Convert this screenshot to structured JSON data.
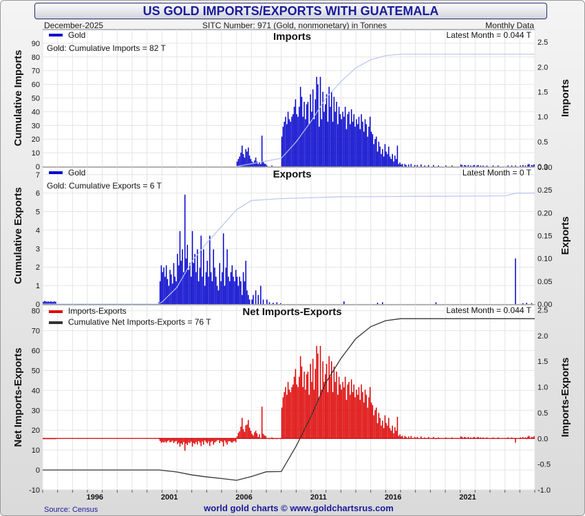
{
  "header": {
    "title": "US GOLD IMPORTS/EXPORTS WITH GUATEMALA",
    "date": "December-2025",
    "sitc": "SITC Number: 971 (Gold, nonmonetary) in Tonnes",
    "frequency": "Monthly Data"
  },
  "footer": {
    "source": "Source: Census",
    "credit": "world gold charts © www.goldchartsrus.com"
  },
  "colors": {
    "imports_bar": "#0000cc",
    "exports_bar": "#0000cc",
    "net_bar": "#dd0000",
    "cumulative_line": "#b8c4f0",
    "net_cumulative_line": "#333333",
    "zero_line_net": "#cc0000"
  },
  "chart_data": [
    {
      "type": "bar",
      "title": "Imports",
      "legend": [
        "Gold",
        "Gold: Cumulative Imports = 82 T"
      ],
      "latest": "Latest Month = 0.044 T",
      "ylabel_left": "Cumulative Imports",
      "ylabel_right": "Imports",
      "ylim_left": [
        0,
        100
      ],
      "ylim_right": [
        0,
        2.75
      ],
      "yticks_left": [
        "0",
        "10",
        "20",
        "30",
        "40",
        "50",
        "60",
        "70",
        "80",
        "90"
      ],
      "yticks_right": [
        "0.0",
        "0.5",
        "1.0",
        "1.5",
        "2.0",
        "2.5"
      ],
      "bars_monthly_by_year": {
        "2006": [
          0.1,
          0.15,
          0.2,
          0.28,
          0.42,
          0.25,
          0.18,
          0.35,
          0.3,
          0.38,
          0.22,
          0.15
        ],
        "2007": [
          0.1,
          0.08,
          0.12,
          0.18,
          0.1,
          0.05,
          0.08,
          0.05,
          0.62,
          0.1,
          0.06,
          0.05
        ],
        "2008": [
          0.02,
          0.0,
          0.0,
          0.0,
          0.02,
          0.0,
          0.0,
          0.0,
          0.0,
          0.0,
          0.0,
          0.0
        ],
        "2009": [
          0.6,
          0.8,
          0.9,
          1.0,
          0.85,
          1.1,
          0.95,
          0.9,
          1.0,
          1.05,
          1.2,
          1.35
        ],
        "2010": [
          1.05,
          1.0,
          1.2,
          1.6,
          1.4,
          1.0,
          1.3,
          0.95,
          1.25,
          1.3,
          0.85,
          1.45
        ],
        "2011": [
          1.1,
          1.55,
          0.95,
          1.35,
          1.8,
          1.65,
          0.8,
          1.8,
          0.95,
          1.5,
          1.1,
          1.25
        ],
        "2012": [
          1.45,
          0.9,
          1.6,
          1.2,
          1.5,
          0.9,
          1.4,
          1.1,
          1.3,
          0.85,
          1.2,
          1.05
        ],
        "2013": [
          0.95,
          1.1,
          1.0,
          1.2,
          0.75,
          1.05,
          1.1,
          0.85,
          1.15,
          0.9,
          1.05,
          0.8
        ],
        "2014": [
          0.95,
          0.85,
          1.0,
          0.75,
          1.05,
          0.9,
          0.7,
          0.95,
          0.85,
          0.6,
          0.8,
          1.0
        ],
        "2015": [
          0.7,
          0.65,
          0.45,
          0.55,
          0.6,
          0.3,
          0.5,
          0.4,
          0.25,
          0.35,
          0.2,
          0.45
        ],
        "2016": [
          0.3,
          0.25,
          0.4,
          0.2,
          0.15,
          0.25,
          0.1,
          0.22,
          0.15,
          0.42,
          0.05,
          0.08
        ],
        "2017": [
          0.04,
          0.05,
          0.0,
          0.05,
          0.03,
          0.0,
          0.04,
          0.0,
          0.05,
          0.0,
          0.0,
          0.03
        ],
        "2018": [
          0.0,
          0.03,
          0.0,
          0.0,
          0.04,
          0.0,
          0.0,
          0.02,
          0.0,
          0.0,
          0.03,
          0.0
        ],
        "2019": [
          0.0,
          0.0,
          0.03,
          0.0,
          0.0,
          0.0,
          0.02,
          0.0,
          0.0,
          0.0,
          0.0,
          0.0
        ],
        "2020": [
          0.02,
          0.0,
          0.0,
          0.0,
          0.0,
          0.02,
          0.0,
          0.0,
          0.0,
          0.0,
          0.0,
          0.0
        ],
        "2021": [
          0.04,
          0.03,
          0.0,
          0.03,
          0.02,
          0.0,
          0.03,
          0.0,
          0.02,
          0.0,
          0.02,
          0.03
        ],
        "2022": [
          0.0,
          0.02,
          0.03,
          0.0,
          0.02,
          0.0,
          0.02,
          0.0,
          0.0,
          0.02,
          0.0,
          0.0
        ],
        "2023": [
          0.0,
          0.0,
          0.02,
          0.0,
          0.0,
          0.0,
          0.02,
          0.0,
          0.0,
          0.0,
          0.0,
          0.0
        ],
        "2024": [
          0.0,
          0.0,
          0.02,
          0.0,
          0.0,
          0.02,
          0.0,
          0.0,
          0.02,
          0.0,
          0.0,
          0.0
        ],
        "2025": [
          0.02,
          0.0,
          0.03,
          0.0,
          0.02,
          0.0,
          0.04,
          0.05,
          0.0,
          0.03,
          0.02,
          0.044
        ]
      },
      "cumulative_points": [
        [
          2006.0,
          0
        ],
        [
          2007.0,
          2
        ],
        [
          2008.0,
          4
        ],
        [
          2009.0,
          6
        ],
        [
          2010.0,
          18
        ],
        [
          2011.0,
          33
        ],
        [
          2012.0,
          50
        ],
        [
          2013.0,
          62
        ],
        [
          2014.0,
          72
        ],
        [
          2015.0,
          78
        ],
        [
          2016.0,
          81
        ],
        [
          2017.0,
          82
        ],
        [
          2026.0,
          82
        ]
      ]
    },
    {
      "type": "bar",
      "title": "Exports",
      "legend": [
        "Gold",
        "Gold: Cumulative Exports = 6 T"
      ],
      "latest": "Latest Month = 0 T",
      "ylabel_left": "Cumulative Exports",
      "ylabel_right": "Exports",
      "ylim_left": [
        0,
        7.4
      ],
      "ylim_right": [
        0,
        0.3
      ],
      "yticks_left": [
        "0",
        "1",
        "2",
        "3",
        "4",
        "5",
        "6",
        "7"
      ],
      "yticks_right": [
        "0.00",
        "0.05",
        "0.10",
        "0.15",
        "0.20",
        "0.25",
        "0.30"
      ],
      "bars_monthly_by_year": {
        "1993": [
          0.005,
          0.007,
          0.006,
          0.005,
          0.006,
          0.005,
          0.006,
          0.005,
          0.005,
          0.006,
          0.005,
          0.0
        ],
        "2000": [
          0.0,
          0.0,
          0.0,
          0.0,
          0.0,
          0.0,
          0.0,
          0.0,
          0.0,
          0.004,
          0.05,
          0.085
        ],
        "2001": [
          0.07,
          0.08,
          0.06,
          0.085,
          0.055,
          0.04,
          0.075,
          0.065,
          0.045,
          0.09,
          0.06,
          0.05
        ],
        "2002": [
          0.11,
          0.085,
          0.16,
          0.095,
          0.12,
          0.07,
          0.24,
          0.1,
          0.13,
          0.075,
          0.09,
          0.06
        ],
        "2003": [
          0.16,
          0.09,
          0.11,
          0.07,
          0.12,
          0.05,
          0.08,
          0.15,
          0.06,
          0.12,
          0.04,
          0.07
        ],
        "2004": [
          0.095,
          0.06,
          0.15,
          0.07,
          0.05,
          0.12,
          0.08,
          0.06,
          0.04,
          0.03,
          0.09,
          0.05
        ],
        "2005": [
          0.07,
          0.155,
          0.04,
          0.08,
          0.12,
          0.06,
          0.05,
          0.07,
          0.085,
          0.06,
          0.05,
          0.075
        ],
        "2006": [
          0.06,
          0.04,
          0.06,
          0.05,
          0.02,
          0.07,
          0.05,
          0.095,
          0.03,
          0.02,
          0.01,
          0.0
        ],
        "2007": [
          0.01,
          0.02,
          0.0,
          0.03,
          0.0,
          0.02,
          0.0,
          0.04,
          0.0,
          0.01,
          0.0,
          0.0
        ],
        "2008": [
          0.01,
          0.0,
          0.004,
          0.0,
          0.0,
          0.003,
          0.0,
          0.0,
          0.004,
          0.0,
          0.0,
          0.002
        ],
        "2013": [
          0.0,
          0.0,
          0.006,
          0.0,
          0.0,
          0.0,
          0.0,
          0.0,
          0.0,
          0.0,
          0.0,
          0.0
        ],
        "2015": [
          0.0,
          0.0,
          0.0,
          0.0,
          0.0,
          0.003,
          0.0,
          0.0,
          0.0,
          0.004,
          0.0,
          0.0
        ],
        "2019": [
          0.0,
          0.0,
          0.0,
          0.0,
          0.004,
          0.0,
          0.0,
          0.0,
          0.0,
          0.0,
          0.0,
          0.0
        ],
        "2024": [
          0.0,
          0.0,
          0.0,
          0.0,
          0.0,
          0.0,
          0.0,
          0.0,
          0.1,
          0.0,
          0.0,
          0.0
        ],
        "2025": [
          0.0,
          0.0,
          0.002,
          0.0,
          0.0,
          0.003,
          0.0,
          0.0,
          0.0,
          0.002,
          0.0,
          0.0
        ]
      },
      "cumulative_points": [
        [
          1993.0,
          0.0
        ],
        [
          2000.7,
          0.0
        ],
        [
          2001.0,
          0.1
        ],
        [
          2002.0,
          0.9
        ],
        [
          2003.0,
          2.3
        ],
        [
          2004.0,
          3.3
        ],
        [
          2005.0,
          4.2
        ],
        [
          2006.0,
          5.1
        ],
        [
          2007.0,
          5.6
        ],
        [
          2009.0,
          5.7
        ],
        [
          2013.0,
          5.8
        ],
        [
          2024.0,
          5.85
        ],
        [
          2024.8,
          6.0
        ],
        [
          2026.0,
          6.0
        ]
      ]
    },
    {
      "type": "bar",
      "title": "Net Imports-Exports",
      "legend": [
        "Imports-Exports",
        "Cumulative Net Imports-Exports = 76 T"
      ],
      "latest": "Latest Month = 0.044 T",
      "ylabel_left": "Net Imports-Exports",
      "ylabel_right": "Imports-Exports",
      "ylim_left": [
        -10,
        83
      ],
      "ylim_right": [
        -1.0,
        2.6
      ],
      "yticks_left": [
        "-10",
        "0",
        "10",
        "20",
        "30",
        "40",
        "50",
        "60",
        "70",
        "80"
      ],
      "yticks_right": [
        "-1.0",
        "-0.5",
        "0.0",
        "0.5",
        "1.0",
        "1.5",
        "2.0",
        "2.5"
      ],
      "bars": "imports_minus_exports_by_month",
      "cumulative_points": [
        [
          1993.0,
          0.0
        ],
        [
          2000.8,
          0.0
        ],
        [
          2002.0,
          -1.0
        ],
        [
          2003.0,
          -2.5
        ],
        [
          2004.0,
          -3.5
        ],
        [
          2005.0,
          -4.3
        ],
        [
          2006.0,
          -5.2
        ],
        [
          2007.0,
          -3.3
        ],
        [
          2008.0,
          -0.9
        ],
        [
          2009.0,
          -0.8
        ],
        [
          2010.0,
          12
        ],
        [
          2011.0,
          27
        ],
        [
          2012.0,
          44
        ],
        [
          2013.0,
          56
        ],
        [
          2014.0,
          66
        ],
        [
          2015.0,
          72
        ],
        [
          2016.0,
          75
        ],
        [
          2017.0,
          76
        ],
        [
          2026.0,
          76
        ]
      ]
    }
  ],
  "x_axis": {
    "range": [
      1993.0,
      2026.0
    ],
    "tick_labels": [
      "1996",
      "2001",
      "2006",
      "2011",
      "2016",
      "2021"
    ]
  }
}
